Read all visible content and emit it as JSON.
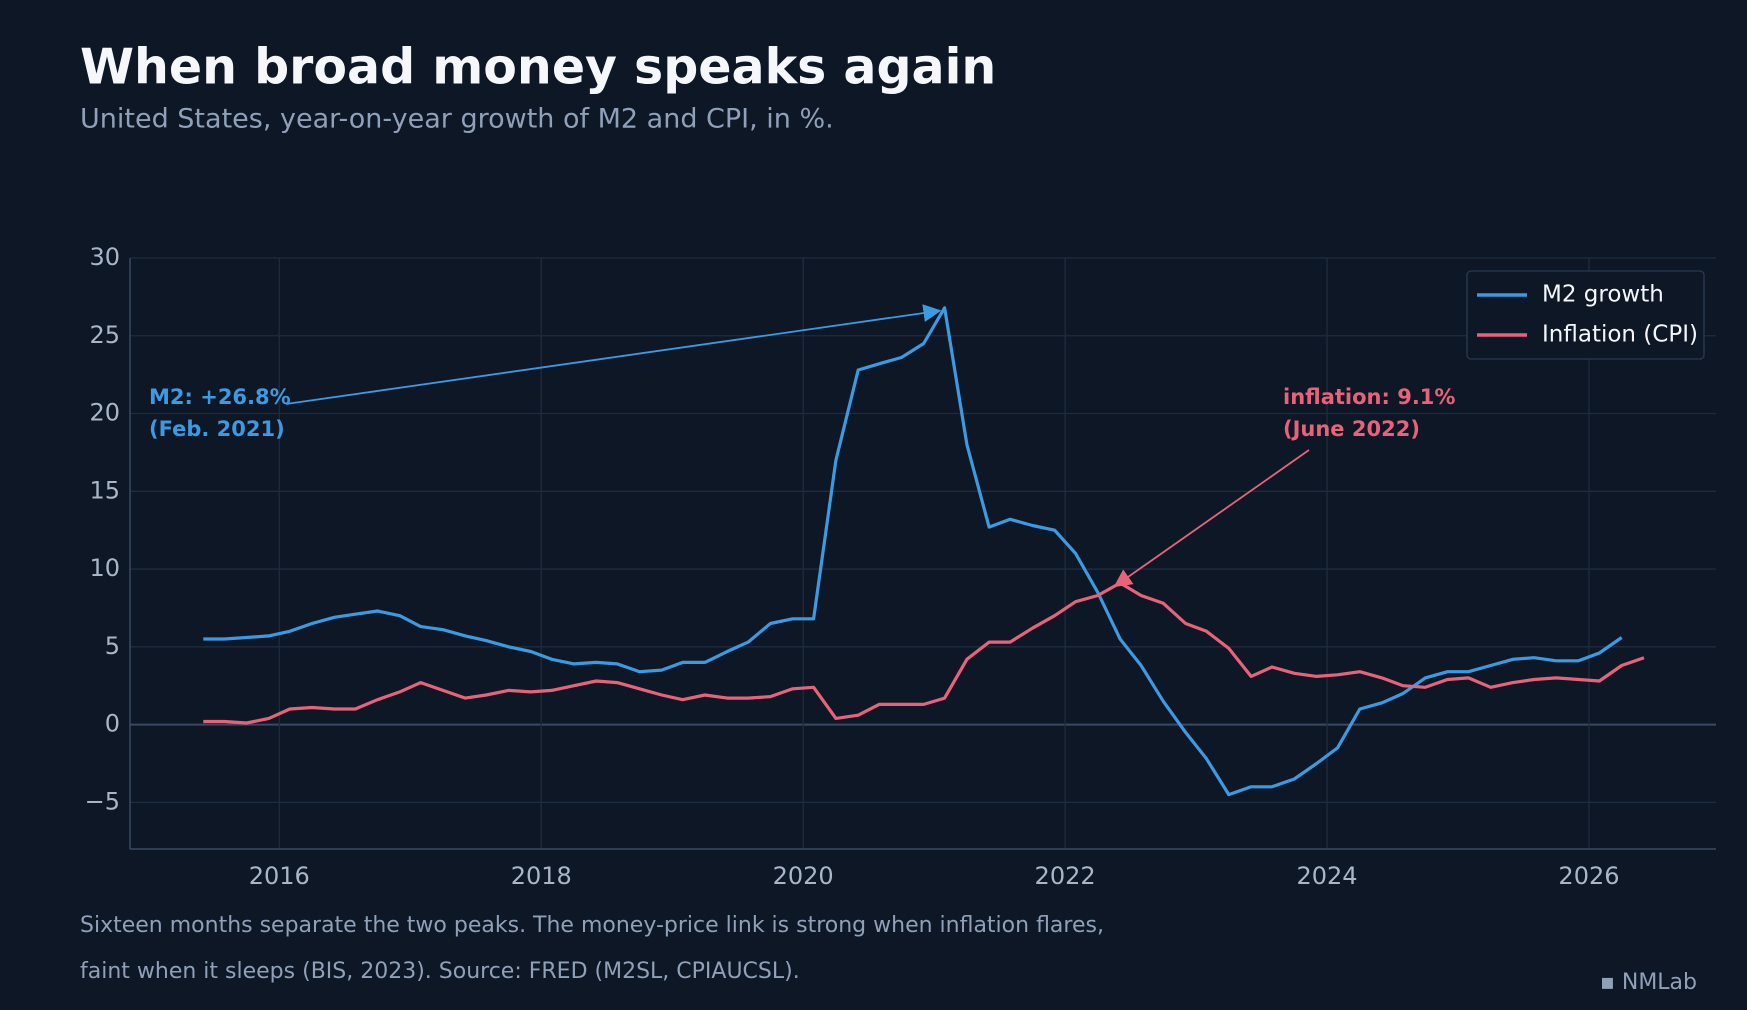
{
  "chart_data": {
    "type": "line",
    "title": "When broad money speaks again",
    "subtitle": "United States, year-on-year growth of M2 and CPI, in %.",
    "notes": [
      "Sixteen months separate the two peaks. The money-price link is strong when inflation flares,",
      "faint when it sleeps (BIS, 2023). Source: FRED (M2SL, CPIAUCSL)."
    ],
    "brand": "▪ NMLab",
    "x": [
      2015.42,
      2015.58,
      2015.75,
      2015.92,
      2016.08,
      2016.25,
      2016.42,
      2016.58,
      2016.75,
      2016.92,
      2017.08,
      2017.25,
      2017.42,
      2017.58,
      2017.75,
      2017.92,
      2018.08,
      2018.25,
      2018.42,
      2018.58,
      2018.75,
      2018.92,
      2019.08,
      2019.25,
      2019.42,
      2019.58,
      2019.75,
      2019.92,
      2020.08,
      2020.25,
      2020.42,
      2020.58,
      2020.75,
      2020.92,
      2021.08,
      2021.25,
      2021.42,
      2021.58,
      2021.75,
      2021.92,
      2022.08,
      2022.25,
      2022.42,
      2022.58,
      2022.75,
      2022.92,
      2023.08,
      2023.25,
      2023.42,
      2023.58,
      2023.75,
      2023.92,
      2024.08,
      2024.25,
      2024.42,
      2024.58,
      2024.75,
      2024.92,
      2025.08,
      2025.25,
      2025.42,
      2025.58,
      2025.75,
      2025.92,
      2026.08,
      2026.25,
      2026.42
    ],
    "series": [
      {
        "name": "M2 growth",
        "color": "#3b9ae1",
        "values": [
          5.5,
          5.5,
          5.6,
          5.7,
          6.0,
          6.5,
          6.9,
          7.1,
          7.3,
          7.0,
          6.3,
          6.1,
          5.7,
          5.4,
          5.0,
          4.7,
          4.2,
          3.9,
          4.0,
          3.9,
          3.4,
          3.5,
          4.0,
          4.0,
          4.7,
          5.3,
          6.5,
          6.8,
          6.8,
          17,
          22.8,
          23.2,
          23.6,
          24.5,
          26.8,
          18,
          12.7,
          13.2,
          12.8,
          12.5,
          11.0,
          8.5,
          5.5,
          3.8,
          1.5,
          -0.5,
          -2.2,
          -4.5,
          -4.0,
          -4.0,
          -3.5,
          -2.5,
          -1.5,
          1.0,
          1.4,
          2.0,
          3.0,
          3.4,
          3.4,
          3.8,
          4.2,
          4.3,
          4.1,
          4.1,
          4.6,
          5.6,
          null
        ]
      },
      {
        "name": "Inflation (CPI)",
        "color": "#e8637a",
        "values": [
          0.2,
          0.2,
          0.1,
          0.4,
          1.0,
          1.1,
          1.0,
          1.0,
          1.6,
          2.1,
          2.7,
          2.2,
          1.7,
          1.9,
          2.2,
          2.1,
          2.2,
          2.5,
          2.8,
          2.7,
          2.3,
          1.9,
          1.6,
          1.9,
          1.7,
          1.7,
          1.8,
          2.3,
          2.4,
          0.4,
          0.6,
          1.3,
          1.3,
          1.3,
          1.7,
          4.2,
          5.3,
          5.3,
          6.2,
          7.0,
          7.9,
          8.3,
          9.1,
          8.3,
          7.8,
          6.5,
          6.0,
          4.9,
          3.1,
          3.7,
          3.3,
          3.1,
          3.2,
          3.4,
          3.0,
          2.5,
          2.4,
          2.9,
          3.0,
          2.4,
          2.7,
          2.9,
          3.0,
          2.9,
          2.8,
          3.8,
          4.3
        ]
      }
    ],
    "annotations": [
      {
        "text": [
          "M2: +26.8%",
          "(Feb. 2021)"
        ],
        "color": "#3b9ae1"
      },
      {
        "text": [
          "inflation: 9.1%",
          "(June 2022)"
        ],
        "color": "#e8637a"
      }
    ],
    "xlim": [
      2014.86,
      2026.97
    ],
    "xticks": [
      2016,
      2018,
      2020,
      2022,
      2024,
      2026
    ],
    "ylim": [
      -8,
      30
    ],
    "yticks": [
      {
        "value": -5,
        "label": "−5"
      },
      0,
      5,
      10,
      15,
      20,
      25,
      30
    ],
    "grid": true,
    "legend": "upper right"
  }
}
